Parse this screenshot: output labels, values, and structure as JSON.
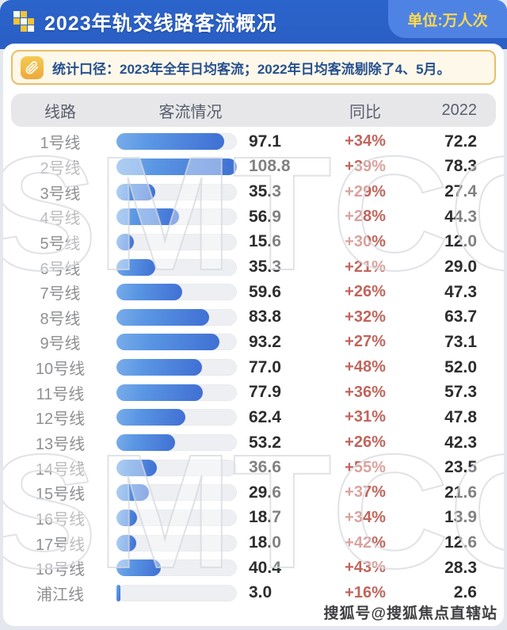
{
  "header": {
    "title": "2023年轨交线路客流概况",
    "unit_label": "单位:万人次"
  },
  "note": {
    "text": "统计口径：2023年全年日均客流；2022年日均客流剔除了4、5月。"
  },
  "table": {
    "columns": [
      "线路",
      "客流情况",
      "同比",
      "2022"
    ]
  },
  "watermark": {
    "center_text": "SMTCC",
    "credit": "搜狐号@搜狐焦点直辖站"
  },
  "colors": {
    "header_blue": "#2b64cb",
    "badge_blue": "#4f83e3",
    "unit_yellow": "#ffd94e",
    "note_bg": "#fdf8e9",
    "note_border": "#eabd67",
    "note_text": "#27508f",
    "bar_gradient_start": "#79ade9",
    "bar_gradient_end": "#3f6fd3",
    "track_gray": "#edeff2",
    "yoy_red": "#c0655c",
    "value_dark": "#2c2d2f",
    "label_gray": "#8e9093"
  },
  "chart_data": {
    "type": "bar",
    "title": "2023年轨交线路客流概况",
    "unit": "万人次",
    "note": "统计口径：2023年全年日均客流；2022年日均客流剔除了4、5月。",
    "categories": [
      "1号线",
      "2号线",
      "3号线",
      "4号线",
      "5号线",
      "6号线",
      "7号线",
      "8号线",
      "9号线",
      "10号线",
      "11号线",
      "12号线",
      "13号线",
      "14号线",
      "15号线",
      "16号线",
      "17号线",
      "18号线",
      "浦江线"
    ],
    "series": [
      {
        "name": "客流情况",
        "values": [
          97.1,
          108.8,
          35.3,
          56.9,
          15.6,
          35.3,
          59.6,
          83.8,
          93.2,
          77.0,
          77.9,
          62.4,
          53.2,
          36.6,
          29.6,
          18.7,
          18.0,
          40.4,
          3.0
        ]
      },
      {
        "name": "同比",
        "values": [
          "+34%",
          "+39%",
          "+29%",
          "+28%",
          "+30%",
          "+21%",
          "+26%",
          "+32%",
          "+27%",
          "+48%",
          "+36%",
          "+31%",
          "+26%",
          "+55%",
          "+37%",
          "+34%",
          "+42%",
          "+43%",
          "+16%"
        ]
      },
      {
        "name": "2022",
        "values": [
          72.2,
          78.3,
          27.4,
          44.3,
          12.0,
          29.0,
          47.3,
          63.7,
          73.1,
          52.0,
          57.3,
          47.8,
          42.3,
          23.5,
          21.6,
          13.9,
          12.6,
          28.3,
          2.6
        ]
      }
    ],
    "xlim": [
      0,
      110
    ],
    "orientation": "horizontal",
    "grid": false,
    "legend": false
  }
}
